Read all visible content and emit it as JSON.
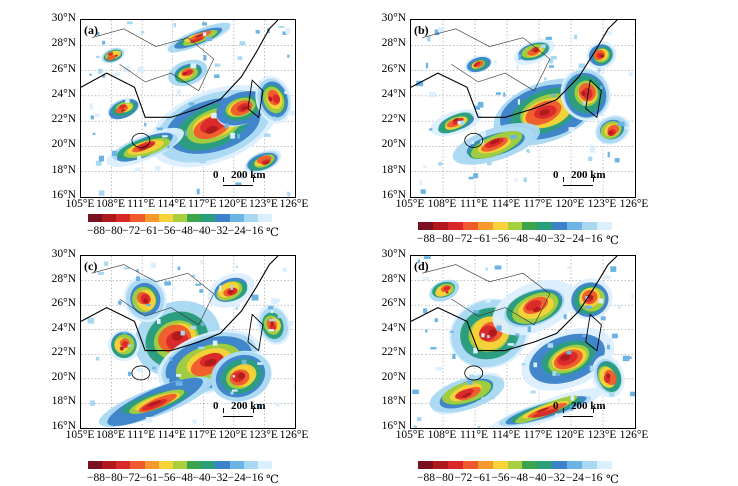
{
  "panels": [
    {
      "label": "(a)"
    },
    {
      "label": "(b)"
    },
    {
      "label": "(c)"
    },
    {
      "label": "(d)"
    }
  ],
  "lat_labels": [
    "30°N",
    "28°N",
    "26°N",
    "24°N",
    "22°N",
    "20°N",
    "18°N",
    "16°N"
  ],
  "lon_labels": [
    "105°E",
    "108°E",
    "111°E",
    "114°E",
    "117°E",
    "120°E",
    "123°E",
    "126°E"
  ],
  "scale_bar": {
    "zero": "0",
    "distance": "200 km"
  },
  "colorbar": {
    "labels": [
      "−88",
      "−80",
      "−72",
      "−61",
      "−56",
      "−48",
      "−40",
      "−32",
      "−24",
      "−16"
    ],
    "unit": "℃",
    "colors": [
      "#7a1020",
      "#b01a1e",
      "#d8282a",
      "#ef5a2d",
      "#f79a2e",
      "#f7d238",
      "#a7cf3e",
      "#3aa54a",
      "#2b9e7a",
      "#3b82c8",
      "#6cb4e4",
      "#a9d8f2",
      "#dcefff"
    ]
  }
}
